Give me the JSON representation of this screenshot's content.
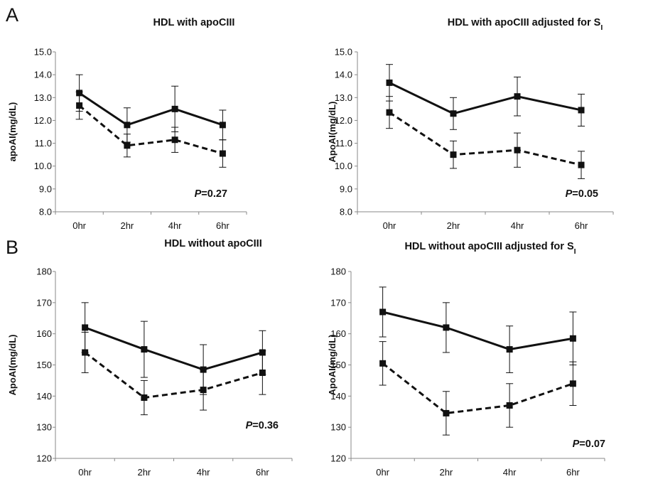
{
  "panel_labels": [
    "A",
    "B"
  ],
  "chart_data": [
    {
      "type": "line",
      "title": "HDL with apoCIII",
      "title_subscript": "",
      "ylabel": "apoAI(mg/dL)",
      "categories": [
        "0hr",
        "2hr",
        "4hr",
        "6hr"
      ],
      "ylim": [
        8.0,
        15.0
      ],
      "yticks": [
        "8.0",
        "9.0",
        "10.0",
        "11.0",
        "12.0",
        "13.0",
        "14.0",
        "15.0"
      ],
      "p_label": "P",
      "p_text": "=0.27",
      "series": [
        {
          "style": "solid",
          "values": [
            13.2,
            11.8,
            12.5,
            11.8
          ],
          "err": [
            0.8,
            0.75,
            1.0,
            0.65
          ]
        },
        {
          "style": "dashed",
          "values": [
            12.65,
            10.9,
            11.15,
            10.55
          ],
          "err": [
            0.6,
            0.5,
            0.55,
            0.6
          ]
        }
      ]
    },
    {
      "type": "line",
      "title": "HDL with apoCIII adjusted for S",
      "title_subscript": "I",
      "ylabel": "ApoAI(mg/dL)",
      "categories": [
        "0hr",
        "2hr",
        "4hr",
        "6hr"
      ],
      "ylim": [
        8.0,
        15.0
      ],
      "yticks": [
        "8.0",
        "9.0",
        "10.0",
        "11.0",
        "12.0",
        "13.0",
        "14.0",
        "15.0"
      ],
      "p_label": "P",
      "p_text": "=0.05",
      "series": [
        {
          "style": "solid",
          "values": [
            13.65,
            12.3,
            13.05,
            12.45
          ],
          "err": [
            0.8,
            0.7,
            0.85,
            0.7
          ]
        },
        {
          "style": "dashed",
          "values": [
            12.35,
            10.5,
            10.7,
            10.05
          ],
          "err": [
            0.7,
            0.6,
            0.75,
            0.6
          ]
        }
      ]
    },
    {
      "type": "line",
      "title": "HDL without apoCIII",
      "title_subscript": "",
      "ylabel": "ApoAI(mg/dL)",
      "categories": [
        "0hr",
        "2hr",
        "4hr",
        "6hr"
      ],
      "ylim": [
        120,
        180
      ],
      "yticks": [
        "120",
        "130",
        "140",
        "150",
        "160",
        "170",
        "180"
      ],
      "p_label": "P",
      "p_text": "=0.36",
      "series": [
        {
          "style": "solid",
          "values": [
            162,
            155,
            148.5,
            154
          ],
          "err": [
            8,
            9,
            8,
            7
          ]
        },
        {
          "style": "dashed",
          "values": [
            154,
            139.5,
            142,
            147.5
          ],
          "err": [
            6.5,
            5.5,
            6.5,
            7
          ]
        }
      ]
    },
    {
      "type": "line",
      "title": "HDL without apoCIII adjusted for S",
      "title_subscript": "I",
      "ylabel": "ApoAI(mg/dL)",
      "categories": [
        "0hr",
        "2hr",
        "4hr",
        "6hr"
      ],
      "ylim": [
        120,
        180
      ],
      "yticks": [
        "120",
        "130",
        "140",
        "150",
        "160",
        "170",
        "180"
      ],
      "p_label": "P",
      "p_text": "=0.07",
      "series": [
        {
          "style": "solid",
          "values": [
            167,
            162,
            155,
            158.5
          ],
          "err": [
            8,
            8,
            7.5,
            8.5
          ]
        },
        {
          "style": "dashed",
          "values": [
            150.5,
            134.5,
            137,
            144
          ],
          "err": [
            7,
            7,
            7,
            7
          ]
        }
      ]
    }
  ]
}
